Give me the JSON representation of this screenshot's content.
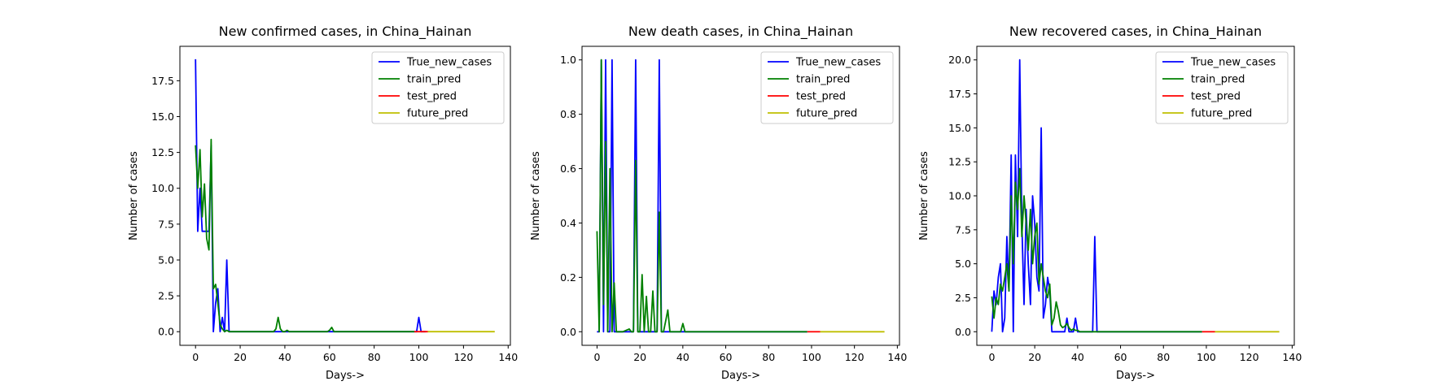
{
  "colors": {
    "True_new_cases": "#0000ff",
    "train_pred": "#008000",
    "test_pred": "#ff0000",
    "future_pred": "#bfbf00"
  },
  "chart_data": [
    {
      "type": "line",
      "title": "New confirmed cases, in China_Hainan",
      "xlabel": "Days->",
      "ylabel": "Number of cases",
      "xlim": [
        -7,
        141
      ],
      "ylim": [
        -0.95,
        19.9
      ],
      "xticks": [
        0,
        20,
        40,
        60,
        80,
        100,
        120,
        140
      ],
      "yticks": [
        0.0,
        2.5,
        5.0,
        7.5,
        10.0,
        12.5,
        15.0,
        17.5
      ],
      "ytick_labels": [
        "0.0",
        "2.5",
        "5.0",
        "7.5",
        "10.0",
        "12.5",
        "15.0",
        "17.5"
      ],
      "legend_position": "top-right",
      "grid": false,
      "series": [
        {
          "name": "True_new_cases",
          "x": [
            0,
            1,
            2,
            3,
            4,
            5,
            6,
            7,
            8,
            9,
            10,
            11,
            12,
            13,
            14,
            15,
            16,
            20,
            30,
            40,
            50,
            60,
            70,
            80,
            90,
            98,
            99,
            100,
            101,
            102,
            103
          ],
          "y": [
            19,
            7,
            10,
            7,
            7,
            7,
            7,
            13,
            0,
            2,
            3,
            0,
            1,
            0,
            5,
            0,
            0,
            0,
            0,
            0,
            0,
            0,
            0,
            0,
            0,
            0,
            0,
            1,
            0,
            0,
            0
          ]
        },
        {
          "name": "train_pred",
          "x": [
            0,
            1,
            2,
            3,
            4,
            5,
            6,
            7,
            8,
            9,
            10,
            11,
            12,
            13,
            14,
            15,
            20,
            30,
            35,
            36,
            37,
            38,
            39,
            40,
            41,
            42,
            50,
            59,
            60,
            61,
            62,
            63,
            70,
            80,
            90,
            98
          ],
          "y": [
            13,
            10,
            12.7,
            8,
            10.3,
            6.5,
            5.7,
            13.4,
            3,
            3.3,
            2,
            0.5,
            0.2,
            0,
            0.1,
            0,
            0,
            0,
            0,
            0.2,
            1,
            0.2,
            0,
            0,
            0.1,
            0,
            0,
            0,
            0.1,
            0.3,
            0,
            0,
            0,
            0,
            0,
            0
          ]
        },
        {
          "name": "test_pred",
          "x": [
            98,
            100,
            102,
            104
          ],
          "y": [
            0,
            0,
            0,
            0
          ]
        },
        {
          "name": "future_pred",
          "x": [
            104,
            110,
            120,
            130,
            134
          ],
          "y": [
            0,
            0,
            0,
            0,
            0
          ]
        }
      ]
    },
    {
      "type": "line",
      "title": "New death cases, in China_Hainan",
      "xlabel": "Days->",
      "ylabel": "Number of cases",
      "xlim": [
        -7,
        141
      ],
      "ylim": [
        -0.05,
        1.05
      ],
      "xticks": [
        0,
        20,
        40,
        60,
        80,
        100,
        120,
        140
      ],
      "yticks": [
        0.0,
        0.2,
        0.4,
        0.6,
        0.8,
        1.0
      ],
      "ytick_labels": [
        "0.0",
        "0.2",
        "0.4",
        "0.6",
        "0.8",
        "1.0"
      ],
      "legend_position": "top-right",
      "grid": false,
      "series": [
        {
          "name": "True_new_cases",
          "x": [
            0,
            1,
            2,
            3,
            4,
            5,
            6,
            7,
            8,
            9,
            10,
            16,
            17,
            18,
            19,
            20,
            27,
            28,
            29,
            30,
            31,
            40,
            50,
            60,
            70,
            80,
            90,
            98
          ],
          "y": [
            0,
            0,
            1,
            0,
            1,
            0,
            0,
            1,
            0,
            0,
            0,
            0,
            0,
            1,
            0,
            0,
            0,
            0,
            1,
            0,
            0,
            0,
            0,
            0,
            0,
            0,
            0,
            0
          ]
        },
        {
          "name": "train_pred",
          "x": [
            0,
            1,
            2,
            3,
            4,
            5,
            6,
            7,
            8,
            9,
            10,
            11,
            12,
            15,
            16,
            17,
            18,
            19,
            20,
            21,
            22,
            23,
            24,
            25,
            26,
            27,
            28,
            29,
            30,
            31,
            32,
            33,
            34,
            38,
            39,
            40,
            41,
            50,
            60,
            70,
            80,
            90,
            98
          ],
          "y": [
            0.37,
            0,
            1,
            0.1,
            0.7,
            0,
            0.6,
            0,
            0.18,
            0,
            0,
            0,
            0,
            0.01,
            0,
            0,
            0.63,
            0,
            0,
            0.21,
            0,
            0.13,
            0,
            0,
            0.15,
            0,
            0,
            0.44,
            0,
            0,
            0.04,
            0.08,
            0,
            0,
            0,
            0.03,
            0,
            0,
            0,
            0,
            0,
            0,
            0
          ]
        },
        {
          "name": "test_pred",
          "x": [
            98,
            100,
            102,
            104
          ],
          "y": [
            0,
            0,
            0,
            0
          ]
        },
        {
          "name": "future_pred",
          "x": [
            104,
            110,
            120,
            130,
            134
          ],
          "y": [
            0,
            0,
            0,
            0,
            0
          ]
        }
      ]
    },
    {
      "type": "line",
      "title": "New recovered cases, in China_Hainan",
      "xlabel": "Days->",
      "ylabel": "Number of cases",
      "xlim": [
        -7,
        141
      ],
      "ylim": [
        -1.0,
        21.0
      ],
      "xticks": [
        0,
        20,
        40,
        60,
        80,
        100,
        120,
        140
      ],
      "yticks": [
        0.0,
        2.5,
        5.0,
        7.5,
        10.0,
        12.5,
        15.0,
        17.5,
        20.0
      ],
      "ytick_labels": [
        "0.0",
        "2.5",
        "5.0",
        "7.5",
        "10.0",
        "12.5",
        "15.0",
        "17.5",
        "20.0"
      ],
      "legend_position": "top-right",
      "grid": false,
      "series": [
        {
          "name": "True_new_cases",
          "x": [
            0,
            1,
            2,
            3,
            4,
            5,
            6,
            7,
            8,
            9,
            10,
            11,
            12,
            13,
            14,
            15,
            16,
            17,
            18,
            19,
            20,
            21,
            22,
            23,
            24,
            25,
            26,
            27,
            28,
            29,
            30,
            31,
            32,
            33,
            34,
            35,
            36,
            37,
            38,
            39,
            40,
            41,
            42,
            43,
            44,
            45,
            46,
            47,
            48,
            49,
            50,
            60,
            70,
            80,
            90,
            98
          ],
          "y": [
            0,
            3,
            2,
            4,
            5,
            0,
            1,
            7,
            3,
            13,
            0,
            13,
            7,
            20,
            8,
            2,
            9,
            5,
            2,
            10,
            8,
            4,
            3,
            15,
            1,
            2,
            4,
            3,
            0,
            0,
            0,
            0,
            0,
            0,
            0,
            1,
            0,
            0,
            0,
            1,
            0,
            0,
            0,
            0,
            0,
            0,
            0,
            0,
            7,
            0,
            0,
            0,
            0,
            0,
            0,
            0
          ]
        },
        {
          "name": "train_pred",
          "x": [
            0,
            1,
            2,
            3,
            4,
            5,
            6,
            7,
            8,
            9,
            10,
            11,
            12,
            13,
            14,
            15,
            16,
            17,
            18,
            19,
            20,
            21,
            22,
            23,
            24,
            25,
            26,
            27,
            28,
            29,
            30,
            31,
            32,
            33,
            34,
            35,
            36,
            37,
            38,
            39,
            40,
            41,
            42,
            43,
            44,
            45,
            46,
            47,
            48,
            49,
            50,
            60,
            70,
            80,
            90,
            98
          ],
          "y": [
            2.6,
            1,
            2.5,
            2,
            3.5,
            3,
            4,
            5,
            3,
            10,
            5,
            11,
            9,
            12,
            7,
            10,
            8,
            6,
            9,
            5,
            7,
            8,
            3.5,
            5,
            4,
            3,
            2.5,
            3.5,
            0.5,
            1,
            2.2,
            1.5,
            0.5,
            0.3,
            0.4,
            0.6,
            0.3,
            0.1,
            0.2,
            0.1,
            0.1,
            0,
            0,
            0,
            0,
            0,
            0,
            0,
            0,
            0,
            0,
            0,
            0,
            0,
            0,
            0
          ]
        },
        {
          "name": "test_pred",
          "x": [
            98,
            100,
            102,
            104
          ],
          "y": [
            0,
            0,
            0,
            0
          ]
        },
        {
          "name": "future_pred",
          "x": [
            104,
            110,
            120,
            130,
            134
          ],
          "y": [
            0,
            0,
            0,
            0,
            0
          ]
        }
      ]
    }
  ]
}
